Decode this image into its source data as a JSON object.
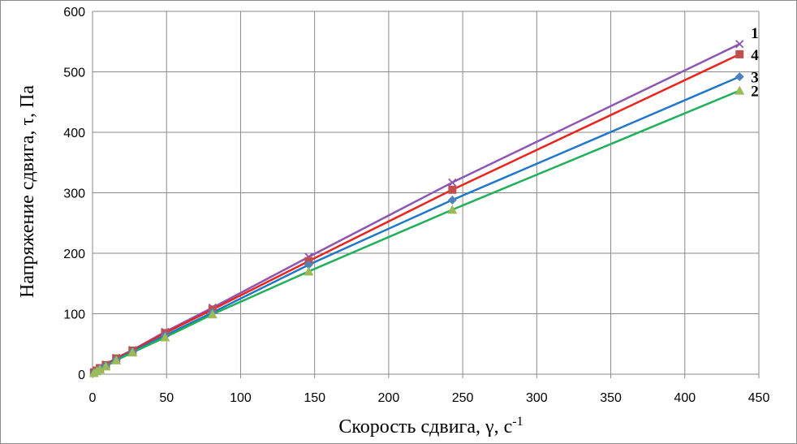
{
  "chart_data": {
    "type": "line",
    "title": "",
    "xlabel": "Скорость сдвига, γ, с",
    "xlabel_superscript": "-1",
    "ylabel": "Напряжение сдвига, τ, Па",
    "xlim": [
      0,
      450
    ],
    "ylim": [
      0,
      600
    ],
    "xticks": [
      "0",
      "50",
      "100",
      "150",
      "200",
      "250",
      "300",
      "350",
      "400",
      "450"
    ],
    "yticks": [
      "0",
      "100",
      "200",
      "300",
      "400",
      "500",
      "600"
    ],
    "grid": true,
    "legend": "none",
    "series": [
      {
        "name": "1",
        "color": "#8e55b3",
        "marker": "x",
        "x": [
          1,
          3,
          5,
          9,
          16,
          27,
          49,
          81,
          146,
          243,
          437
        ],
        "y": [
          2,
          6,
          10,
          16,
          27,
          40,
          70,
          110,
          194,
          317,
          546
        ]
      },
      {
        "name": "4",
        "color": "#e8261f",
        "marker": "square",
        "markerColor": "#c0504d",
        "x": [
          1,
          3,
          5,
          9,
          16,
          27,
          49,
          81,
          146,
          243,
          437
        ],
        "y": [
          3,
          6,
          10,
          15,
          26,
          39,
          68,
          107,
          187,
          305,
          529
        ]
      },
      {
        "name": "3",
        "color": "#1f77c9",
        "marker": "diamond",
        "markerColor": "#4f81bd",
        "x": [
          1,
          3,
          5,
          9,
          16,
          27,
          49,
          81,
          146,
          243,
          437
        ],
        "y": [
          2,
          5,
          9,
          14,
          24,
          37,
          64,
          102,
          181,
          288,
          492
        ]
      },
      {
        "name": "2",
        "color": "#21b05a",
        "marker": "triangle",
        "markerColor": "#9bbb59",
        "x": [
          1,
          3,
          5,
          9,
          16,
          27,
          49,
          81,
          146,
          243,
          437
        ],
        "y": [
          2,
          5,
          8,
          13,
          23,
          36,
          61,
          99,
          170,
          272,
          469
        ]
      }
    ]
  }
}
